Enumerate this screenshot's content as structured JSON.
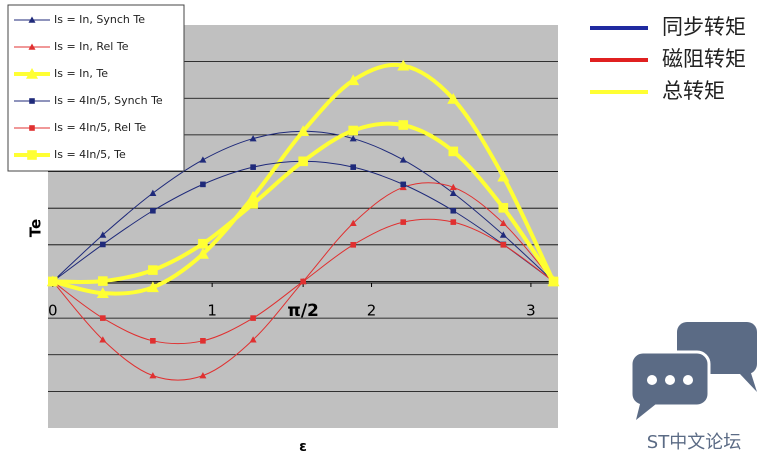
{
  "chart_data": {
    "type": "line",
    "x_label": "ε",
    "y_label": "Te",
    "x": [
      0,
      0.314,
      0.628,
      0.942,
      1.257,
      1.571,
      1.885,
      2.199,
      2.513,
      2.827,
      3.142
    ],
    "series": [
      {
        "name": "Is = In, Synch Te",
        "color": "#1f2a7a",
        "marker": "triangle",
        "width": 1,
        "values": [
          0,
          1.27,
          2.41,
          3.32,
          3.9,
          4.1,
          3.9,
          3.32,
          2.41,
          1.27,
          0
        ]
      },
      {
        "name": "Is = In, Rel Te",
        "color": "#e03030",
        "marker": "triangle",
        "width": 1,
        "values": [
          0,
          -1.59,
          -2.57,
          -2.57,
          -1.59,
          0,
          1.59,
          2.57,
          2.57,
          1.59,
          0
        ]
      },
      {
        "name": "Is = In, Te",
        "color": "#ffff33",
        "marker": "triangle",
        "width": 4,
        "values": [
          0,
          -0.32,
          -0.16,
          0.75,
          2.31,
          4.1,
          5.49,
          5.89,
          4.98,
          2.86,
          0
        ]
      },
      {
        "name": "Is = 4In/5, Synch Te",
        "color": "#1f2a7a",
        "marker": "square",
        "width": 1,
        "values": [
          0,
          1.01,
          1.93,
          2.65,
          3.12,
          3.28,
          3.12,
          2.65,
          1.93,
          1.01,
          0
        ]
      },
      {
        "name": "Is = 4In/5, Rel Te",
        "color": "#e03030",
        "marker": "square",
        "width": 1,
        "values": [
          0,
          -1.0,
          -1.62,
          -1.62,
          -1.0,
          0,
          1.0,
          1.62,
          1.62,
          1.0,
          0
        ]
      },
      {
        "name": "Is = 4In/5, Te",
        "color": "#ffff33",
        "marker": "square",
        "width": 4,
        "values": [
          0,
          0.01,
          0.31,
          1.03,
          2.12,
          3.28,
          4.12,
          4.27,
          3.55,
          2.01,
          0
        ]
      }
    ],
    "xlim": [
      -0.03,
      3.17
    ],
    "ylim": [
      -4,
      7
    ],
    "xticks": [
      0,
      1,
      {
        "value": 1.5708,
        "label": "π/2"
      },
      2,
      3
    ],
    "yticks": [
      -3,
      -2,
      -1,
      0,
      1,
      2,
      3,
      4,
      5,
      6
    ],
    "ytick_labels_shown": false,
    "grid": true,
    "legend": "top-left",
    "legend2": [
      {
        "label": "同步转矩",
        "color": "#1f2aa0"
      },
      {
        "label": "磁阻转矩",
        "color": "#e02020"
      },
      {
        "label": "总转矩",
        "color": "#ffff33"
      }
    ],
    "watermark": "ST中文论坛"
  }
}
